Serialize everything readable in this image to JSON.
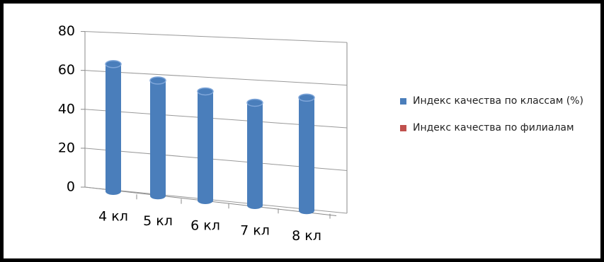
{
  "chart_data": {
    "type": "bar",
    "categories": [
      "4 кл",
      "5 кл",
      "6 кл",
      "7 кл",
      "8 кл"
    ],
    "series": [
      {
        "name": "Индекс качества по классам (%)",
        "color": "#4a7ebb",
        "values": [
          64,
          57,
          53,
          49,
          53
        ]
      },
      {
        "name": "Индекс качества по филиалам",
        "color": "#c0504d",
        "values": [
          null,
          null,
          null,
          null,
          null
        ]
      }
    ],
    "ylim": [
      0,
      80
    ],
    "yticks": [
      0,
      20,
      40,
      60,
      80
    ],
    "grid": true,
    "legend": "right"
  }
}
